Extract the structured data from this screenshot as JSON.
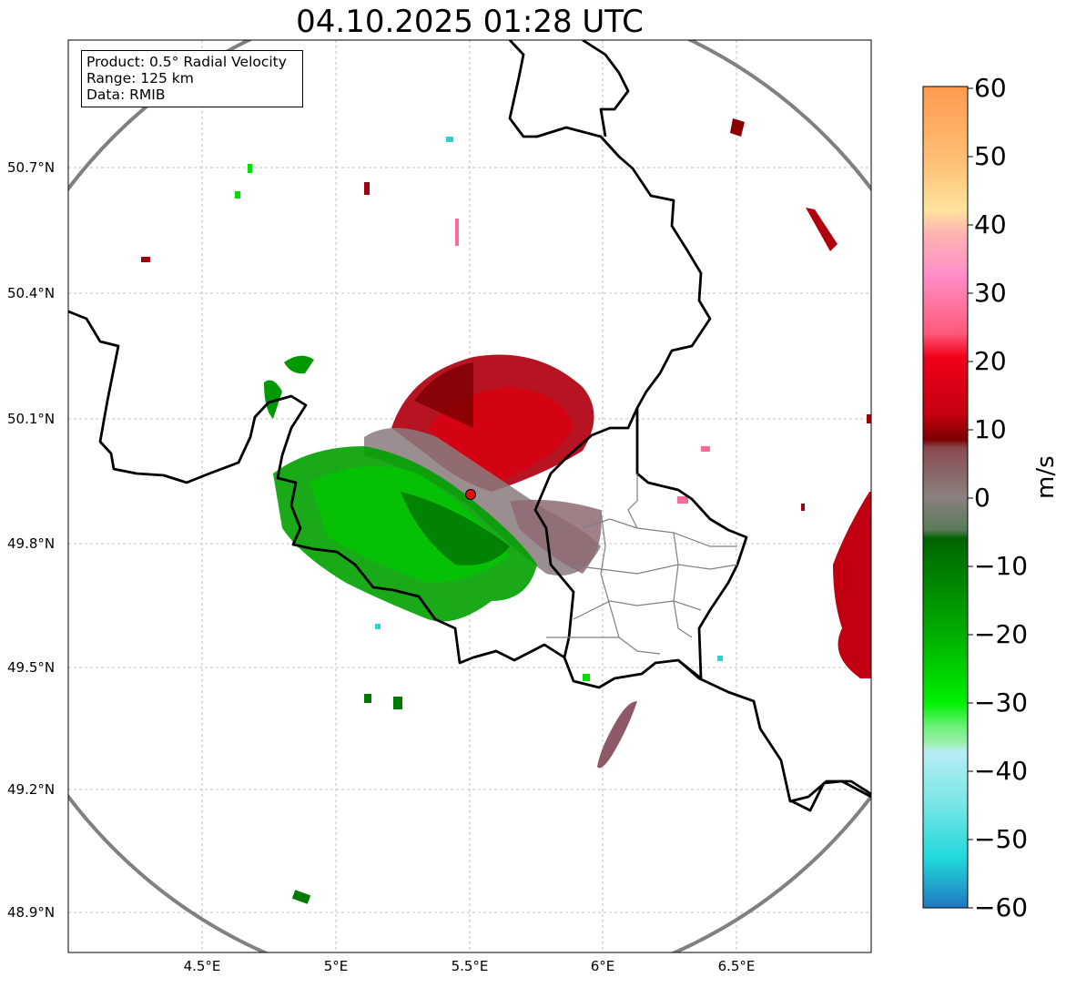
{
  "title": "04.10.2025 01:28 UTC",
  "info": {
    "product": "Product: 0.5° Radial Velocity",
    "range": "Range: 125 km",
    "data": "Data: RMIB"
  },
  "map": {
    "lat_ticks": [
      "50.7°N",
      "50.4°N",
      "50.1°N",
      "49.8°N",
      "49.5°N",
      "49.2°N",
      "48.9°N"
    ],
    "lon_ticks": [
      "4.5°E",
      "5°E",
      "5.5°E",
      "6°E",
      "6.5°E"
    ],
    "radar_site": {
      "lon": 5.5,
      "lat": 49.92
    },
    "range_ring_km": 125
  },
  "colorbar": {
    "label": "m/s",
    "ticks": [
      "60",
      "50",
      "40",
      "30",
      "20",
      "10",
      "0",
      "−10",
      "−20",
      "−30",
      "−40",
      "−50",
      "−60"
    ],
    "colors": [
      "#ff9a4e",
      "#ffc47a",
      "#ffe39c",
      "#ffb3b3",
      "#ff8ec8",
      "#ff5a7a",
      "#f0001a",
      "#c40010",
      "#7a0000",
      "#8a5a60",
      "#6a7a60",
      "#006a00",
      "#009a00",
      "#00e000",
      "#8af0a0",
      "#b0eef0",
      "#30e0e0",
      "#1f7fbf"
    ]
  }
}
